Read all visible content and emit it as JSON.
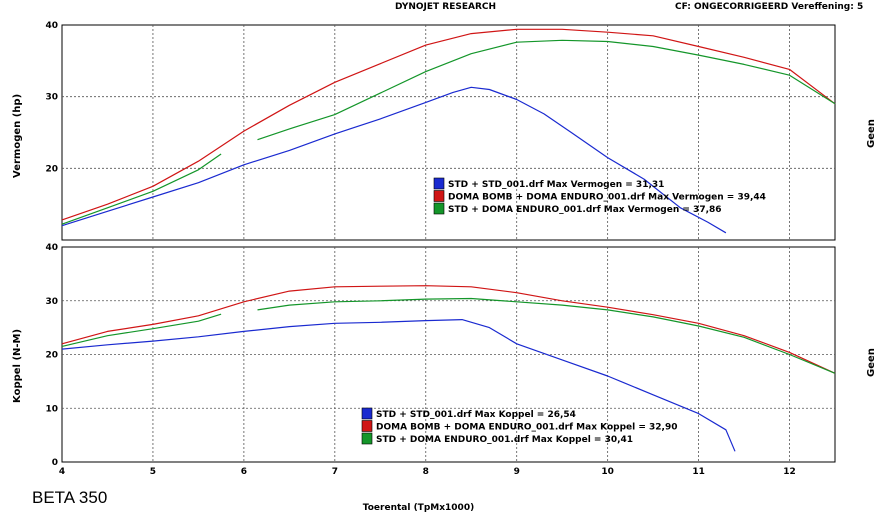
{
  "header": {
    "center": "DYNOJET RESEARCH",
    "right": "CF: ONGECORRIGEERD  Vereffening: 5"
  },
  "label_beta": "BETA 350",
  "colors": {
    "blue": "#1a2ad0",
    "red": "#d01515",
    "green": "#14962a",
    "grid": "#555555"
  },
  "chart_data": [
    {
      "type": "line",
      "ylabel": "Vermogen (hp)",
      "right_label": "Geen",
      "xlim": [
        4,
        12.5
      ],
      "ylim": [
        10,
        40
      ],
      "xticks": [
        4,
        5,
        6,
        7,
        8,
        9,
        10,
        11,
        12
      ],
      "yticks": [
        20,
        30,
        40
      ],
      "legend": [
        {
          "color": "blue",
          "text": "STD + STD_001.drf Max Vermogen = 31,31"
        },
        {
          "color": "red",
          "text": "DOMA BOMB + DOMA ENDURO_001.drf Max Vermogen = 39,44"
        },
        {
          "color": "green",
          "text": "STD + DOMA ENDURO_001.drf Max Vermogen = 37,86"
        }
      ],
      "series": [
        {
          "color": "blue",
          "segments": [
            [
              [
                4,
                12
              ],
              [
                4.5,
                14
              ],
              [
                5,
                16
              ],
              [
                5.5,
                18
              ],
              [
                6,
                20.5
              ],
              [
                6.5,
                22.5
              ],
              [
                7,
                24.8
              ],
              [
                7.5,
                26.9
              ],
              [
                8,
                29.2
              ],
              [
                8.3,
                30.6
              ],
              [
                8.5,
                31.3
              ],
              [
                8.7,
                31
              ],
              [
                9,
                29.6
              ],
              [
                9.3,
                27.6
              ],
              [
                9.6,
                25
              ],
              [
                10,
                21.5
              ],
              [
                10.4,
                18.5
              ],
              [
                10.8,
                14.5
              ],
              [
                11.1,
                12.5
              ],
              [
                11.3,
                11
              ]
            ]
          ]
        },
        {
          "color": "red",
          "segments": [
            [
              [
                4,
                12.8
              ],
              [
                4.5,
                15
              ],
              [
                5,
                17.5
              ],
              [
                5.5,
                21
              ],
              [
                6,
                25.2
              ],
              [
                6.5,
                28.8
              ],
              [
                7,
                32
              ],
              [
                7.5,
                34.6
              ],
              [
                8,
                37.2
              ],
              [
                8.5,
                38.8
              ],
              [
                9,
                39.4
              ],
              [
                9.5,
                39.4
              ],
              [
                10,
                39
              ],
              [
                10.5,
                38.5
              ],
              [
                11,
                37
              ],
              [
                11.5,
                35.5
              ],
              [
                12,
                33.8
              ],
              [
                12.5,
                29
              ]
            ]
          ]
        },
        {
          "color": "green",
          "segments": [
            [
              [
                4,
                12.2
              ],
              [
                4.5,
                14.5
              ],
              [
                5,
                16.8
              ],
              [
                5.5,
                19.8
              ],
              [
                5.75,
                22
              ]
            ],
            [
              [
                6.15,
                24
              ],
              [
                6.5,
                25.5
              ],
              [
                7,
                27.5
              ],
              [
                7.5,
                30.5
              ],
              [
                8,
                33.5
              ],
              [
                8.5,
                36
              ],
              [
                9,
                37.6
              ],
              [
                9.5,
                37.86
              ],
              [
                10,
                37.7
              ],
              [
                10.5,
                37
              ],
              [
                11,
                35.8
              ],
              [
                11.5,
                34.5
              ],
              [
                12,
                33
              ],
              [
                12.5,
                29
              ]
            ]
          ]
        }
      ]
    },
    {
      "type": "line",
      "ylabel": "Koppel (N-M)",
      "right_label": "Geen",
      "xlabel": "Toerental (TpMx1000)",
      "xlim": [
        4,
        12.5
      ],
      "ylim": [
        0,
        40
      ],
      "xticks": [
        4,
        5,
        6,
        7,
        8,
        9,
        10,
        11,
        12
      ],
      "yticks": [
        0,
        10,
        20,
        30,
        40
      ],
      "legend": [
        {
          "color": "blue",
          "text": "STD + STD_001.drf Max Koppel = 26,54"
        },
        {
          "color": "red",
          "text": "DOMA BOMB + DOMA ENDURO_001.drf Max Koppel = 32,90"
        },
        {
          "color": "green",
          "text": "STD + DOMA ENDURO_001.drf Max Koppel = 30,41"
        }
      ],
      "series": [
        {
          "color": "blue",
          "segments": [
            [
              [
                4,
                21
              ],
              [
                4.5,
                21.8
              ],
              [
                5,
                22.5
              ],
              [
                5.5,
                23.3
              ],
              [
                6,
                24.3
              ],
              [
                6.5,
                25.2
              ],
              [
                7,
                25.8
              ],
              [
                7.5,
                26
              ],
              [
                8,
                26.3
              ],
              [
                8.4,
                26.5
              ],
              [
                8.7,
                25
              ],
              [
                9,
                22
              ],
              [
                9.5,
                19
              ],
              [
                10,
                16
              ],
              [
                10.5,
                12.5
              ],
              [
                11,
                9
              ],
              [
                11.3,
                6
              ],
              [
                11.4,
                2
              ]
            ]
          ]
        },
        {
          "color": "red",
          "segments": [
            [
              [
                4,
                22
              ],
              [
                4.5,
                24.3
              ],
              [
                5,
                25.6
              ],
              [
                5.5,
                27.2
              ],
              [
                6,
                29.8
              ],
              [
                6.5,
                31.8
              ],
              [
                7,
                32.6
              ],
              [
                7.5,
                32.7
              ],
              [
                8,
                32.8
              ],
              [
                8.5,
                32.6
              ],
              [
                9,
                31.5
              ],
              [
                9.5,
                30
              ],
              [
                10,
                28.8
              ],
              [
                10.5,
                27.4
              ],
              [
                11,
                25.8
              ],
              [
                11.5,
                23.5
              ],
              [
                12,
                20.4
              ],
              [
                12.5,
                16.5
              ]
            ]
          ]
        },
        {
          "color": "green",
          "segments": [
            [
              [
                4,
                21.5
              ],
              [
                4.5,
                23.5
              ],
              [
                5,
                24.8
              ],
              [
                5.5,
                26.2
              ],
              [
                5.75,
                27.5
              ]
            ],
            [
              [
                6.15,
                28.3
              ],
              [
                6.5,
                29.2
              ],
              [
                7,
                29.8
              ],
              [
                7.5,
                30
              ],
              [
                8,
                30.3
              ],
              [
                8.5,
                30.41
              ],
              [
                9,
                29.8
              ],
              [
                9.5,
                29.2
              ],
              [
                10,
                28.3
              ],
              [
                10.5,
                27
              ],
              [
                11,
                25.3
              ],
              [
                11.5,
                23.2
              ],
              [
                12,
                20
              ],
              [
                12.5,
                16.5
              ]
            ]
          ]
        }
      ]
    }
  ]
}
